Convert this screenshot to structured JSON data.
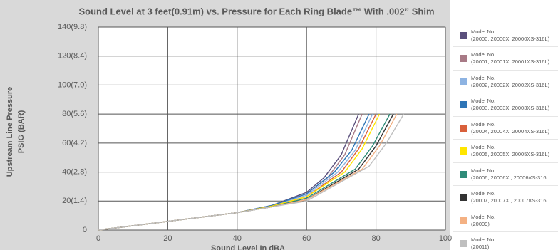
{
  "chart_data": {
    "type": "line",
    "title": "Sound Level at 3 feet(0.91m) vs. Pressure for Each Ring Blade™ With .002” Shim",
    "xlabel": "Sound Level In dBA",
    "ylabel": [
      "Upstream Line Pressure",
      "PSIG (BAR)"
    ],
    "xlim": [
      0,
      100
    ],
    "ylim": [
      0,
      140
    ],
    "xticks": [
      0,
      20,
      40,
      60,
      80,
      100
    ],
    "yticks": [
      0,
      {
        "value": 20,
        "label": "20(1.4)"
      },
      {
        "value": 40,
        "label": "40(2.8)"
      },
      {
        "value": 60,
        "label": "60(4.2)"
      },
      {
        "value": 80,
        "label": "80(5.6)"
      },
      {
        "value": 100,
        "label": "100(7.0)"
      },
      {
        "value": 120,
        "label": "120(8.4)"
      },
      {
        "value": 140,
        "label": "140(9.8)"
      }
    ],
    "grid": true,
    "legend": "right",
    "series": [
      {
        "name": "Model No.\n(20000, 20000X, 20000XS-316L)",
        "color": "#5a4f7c",
        "x": [
          0,
          20,
          40,
          50,
          60,
          65,
          70,
          75
        ],
        "values": [
          0,
          6,
          12,
          17,
          26,
          36,
          52,
          80
        ]
      },
      {
        "name": "Model No.\n(20001, 20001X, 20001XS-316L)",
        "color": "#a87a86",
        "x": [
          0,
          20,
          40,
          50,
          60,
          66,
          71,
          76
        ],
        "values": [
          0,
          6,
          12,
          17,
          25,
          36,
          52,
          80
        ]
      },
      {
        "name": "Model No.\n(20002, 20002X, 20002XS-316L)",
        "color": "#8db3e2",
        "x": [
          0,
          20,
          40,
          50,
          60,
          69,
          74,
          79
        ],
        "values": [
          0,
          6,
          12,
          17,
          24,
          40,
          55,
          80
        ]
      },
      {
        "name": "Model No.\n(20003, 20003X, 20003XS-316L)",
        "color": "#2e75b6",
        "x": [
          0,
          20,
          40,
          50,
          60,
          68,
          73,
          78
        ],
        "values": [
          0,
          6,
          12,
          17,
          25,
          40,
          55,
          80
        ]
      },
      {
        "name": "Model No.\n(20004, 20004X, 20004XS-316L)",
        "color": "#d9603b",
        "x": [
          0,
          20,
          40,
          50,
          60,
          70,
          75,
          80
        ],
        "values": [
          0,
          6,
          12,
          16.5,
          23,
          40,
          56,
          80
        ]
      },
      {
        "name": "Model No.\n(20005, 20005X, 20005XS-316L)",
        "color": "#ffe600",
        "x": [
          0,
          20,
          40,
          50,
          60,
          71,
          76,
          81
        ],
        "values": [
          0,
          6,
          12,
          16.5,
          23,
          40,
          56,
          80
        ]
      },
      {
        "name": "Model No.\n(20006, 20006X,, 20006XS-316L",
        "color": "#2e8b78",
        "x": [
          0,
          20,
          40,
          50,
          60,
          74,
          79,
          84
        ],
        "values": [
          0,
          6,
          12,
          16,
          22,
          42,
          58,
          80
        ]
      },
      {
        "name": "Model No.\n(20007, 20007X,, 20007XS-316L",
        "color": "#333333",
        "x": [
          0,
          20,
          40,
          50,
          60,
          75,
          80,
          85
        ],
        "values": [
          0,
          6,
          12,
          16,
          21,
          42,
          58,
          80
        ]
      },
      {
        "name": "Model No.\n(20009)",
        "color": "#f4b183",
        "x": [
          0,
          20,
          40,
          50,
          60,
          76,
          81,
          86
        ],
        "values": [
          0,
          6,
          12,
          16,
          21,
          42,
          58,
          80
        ]
      },
      {
        "name": "Model No.\n(20011)",
        "color": "#bfbfbf",
        "x": [
          0,
          20,
          40,
          50,
          60,
          78,
          83,
          88
        ],
        "values": [
          0,
          6,
          12,
          16,
          20,
          44,
          60,
          80
        ]
      }
    ]
  }
}
